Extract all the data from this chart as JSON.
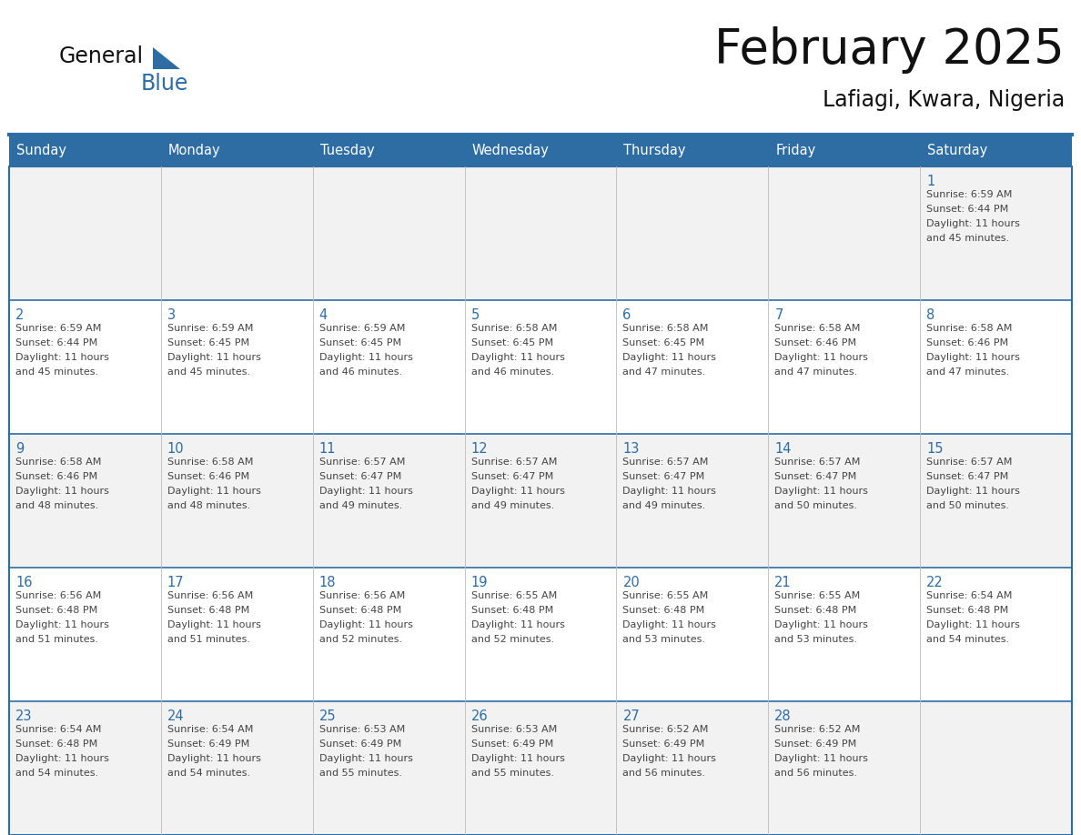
{
  "title": "February 2025",
  "subtitle": "Lafiagi, Kwara, Nigeria",
  "header_bg": "#2E6DA4",
  "header_text_color": "#FFFFFF",
  "text_color": "#444444",
  "number_color": "#2E6DA4",
  "separator_color": "#2E6DA4",
  "cell_bg": "#FFFFFF",
  "alt_row_bg": "#F2F2F2",
  "day_names": [
    "Sunday",
    "Monday",
    "Tuesday",
    "Wednesday",
    "Thursday",
    "Friday",
    "Saturday"
  ],
  "logo_color_general": "#111111",
  "logo_color_blue": "#2E6DA4",
  "logo_triangle_color": "#2E6DA4",
  "calendar": [
    [
      null,
      null,
      null,
      null,
      null,
      null,
      {
        "day": 1,
        "sunrise": "6:59 AM",
        "sunset": "6:44 PM",
        "daylight": "11 hours and 45 minutes."
      }
    ],
    [
      {
        "day": 2,
        "sunrise": "6:59 AM",
        "sunset": "6:44 PM",
        "daylight": "11 hours and 45 minutes."
      },
      {
        "day": 3,
        "sunrise": "6:59 AM",
        "sunset": "6:45 PM",
        "daylight": "11 hours and 45 minutes."
      },
      {
        "day": 4,
        "sunrise": "6:59 AM",
        "sunset": "6:45 PM",
        "daylight": "11 hours and 46 minutes."
      },
      {
        "day": 5,
        "sunrise": "6:58 AM",
        "sunset": "6:45 PM",
        "daylight": "11 hours and 46 minutes."
      },
      {
        "day": 6,
        "sunrise": "6:58 AM",
        "sunset": "6:45 PM",
        "daylight": "11 hours and 47 minutes."
      },
      {
        "day": 7,
        "sunrise": "6:58 AM",
        "sunset": "6:46 PM",
        "daylight": "11 hours and 47 minutes."
      },
      {
        "day": 8,
        "sunrise": "6:58 AM",
        "sunset": "6:46 PM",
        "daylight": "11 hours and 47 minutes."
      }
    ],
    [
      {
        "day": 9,
        "sunrise": "6:58 AM",
        "sunset": "6:46 PM",
        "daylight": "11 hours and 48 minutes."
      },
      {
        "day": 10,
        "sunrise": "6:58 AM",
        "sunset": "6:46 PM",
        "daylight": "11 hours and 48 minutes."
      },
      {
        "day": 11,
        "sunrise": "6:57 AM",
        "sunset": "6:47 PM",
        "daylight": "11 hours and 49 minutes."
      },
      {
        "day": 12,
        "sunrise": "6:57 AM",
        "sunset": "6:47 PM",
        "daylight": "11 hours and 49 minutes."
      },
      {
        "day": 13,
        "sunrise": "6:57 AM",
        "sunset": "6:47 PM",
        "daylight": "11 hours and 49 minutes."
      },
      {
        "day": 14,
        "sunrise": "6:57 AM",
        "sunset": "6:47 PM",
        "daylight": "11 hours and 50 minutes."
      },
      {
        "day": 15,
        "sunrise": "6:57 AM",
        "sunset": "6:47 PM",
        "daylight": "11 hours and 50 minutes."
      }
    ],
    [
      {
        "day": 16,
        "sunrise": "6:56 AM",
        "sunset": "6:48 PM",
        "daylight": "11 hours and 51 minutes."
      },
      {
        "day": 17,
        "sunrise": "6:56 AM",
        "sunset": "6:48 PM",
        "daylight": "11 hours and 51 minutes."
      },
      {
        "day": 18,
        "sunrise": "6:56 AM",
        "sunset": "6:48 PM",
        "daylight": "11 hours and 52 minutes."
      },
      {
        "day": 19,
        "sunrise": "6:55 AM",
        "sunset": "6:48 PM",
        "daylight": "11 hours and 52 minutes."
      },
      {
        "day": 20,
        "sunrise": "6:55 AM",
        "sunset": "6:48 PM",
        "daylight": "11 hours and 53 minutes."
      },
      {
        "day": 21,
        "sunrise": "6:55 AM",
        "sunset": "6:48 PM",
        "daylight": "11 hours and 53 minutes."
      },
      {
        "day": 22,
        "sunrise": "6:54 AM",
        "sunset": "6:48 PM",
        "daylight": "11 hours and 54 minutes."
      }
    ],
    [
      {
        "day": 23,
        "sunrise": "6:54 AM",
        "sunset": "6:48 PM",
        "daylight": "11 hours and 54 minutes."
      },
      {
        "day": 24,
        "sunrise": "6:54 AM",
        "sunset": "6:49 PM",
        "daylight": "11 hours and 54 minutes."
      },
      {
        "day": 25,
        "sunrise": "6:53 AM",
        "sunset": "6:49 PM",
        "daylight": "11 hours and 55 minutes."
      },
      {
        "day": 26,
        "sunrise": "6:53 AM",
        "sunset": "6:49 PM",
        "daylight": "11 hours and 55 minutes."
      },
      {
        "day": 27,
        "sunrise": "6:52 AM",
        "sunset": "6:49 PM",
        "daylight": "11 hours and 56 minutes."
      },
      {
        "day": 28,
        "sunrise": "6:52 AM",
        "sunset": "6:49 PM",
        "daylight": "11 hours and 56 minutes."
      },
      null
    ]
  ]
}
